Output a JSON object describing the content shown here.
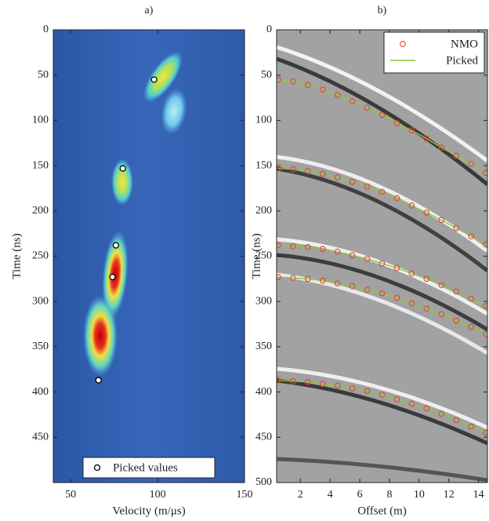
{
  "chart_data": [
    {
      "type": "scatter",
      "title": "a)",
      "x_label": "Velocity (m/μs)",
      "y_label": "Time (ns)",
      "xlim": [
        40,
        150
      ],
      "ylim": [
        0,
        500
      ],
      "y_inverted": true,
      "xticks": [
        50,
        100,
        150
      ],
      "yticks": [
        0,
        50,
        100,
        150,
        200,
        250,
        300,
        350,
        400,
        450
      ],
      "legend": "lower center",
      "series": [
        {
          "name": "Picked values",
          "color": "#000000",
          "x": [
            98,
            80,
            76,
            74,
            66
          ],
          "values": [
            55,
            153,
            238,
            273,
            387
          ]
        }
      ]
    },
    {
      "type": "line",
      "title": "b)",
      "x_label": "Offset (m)",
      "y_label": "Time (ns)",
      "xlim": [
        0.4,
        14.6
      ],
      "ylim": [
        0,
        500
      ],
      "y_inverted": true,
      "xticks": [
        2,
        4,
        6,
        8,
        10,
        12,
        14
      ],
      "yticks": [
        0,
        50,
        100,
        150,
        200,
        250,
        300,
        350,
        400,
        450,
        500
      ],
      "legend": "upper right",
      "x": [
        0.5,
        1.5,
        2.5,
        3.5,
        4.5,
        5.5,
        6.5,
        7.5,
        8.5,
        9.5,
        10.5,
        11.5,
        12.5,
        13.5,
        14.5
      ],
      "series": [
        {
          "name": "NMO",
          "color": "#e8432e",
          "style": "markers",
          "values": [
            [
              55,
              57,
              61,
              66,
              72,
              79,
              86,
              94,
              103,
              111,
              120,
              130,
              139,
              148,
              158
            ],
            [
              153,
              154,
              156,
              159,
              163,
              168,
              173,
              179,
              186,
              194,
              202,
              210,
              219,
              228,
              237
            ],
            [
              238,
              239,
              240,
              242,
              245,
              249,
              253,
              258,
              263,
              269,
              275,
              282,
              289,
              297,
              305
            ],
            [
              273,
              274,
              275,
              277,
              280,
              283,
              287,
              291,
              296,
              302,
              308,
              314,
              321,
              328,
              336
            ],
            [
              387,
              388,
              389,
              391,
              393,
              396,
              399,
              403,
              408,
              413,
              418,
              424,
              431,
              438,
              445
            ]
          ]
        },
        {
          "name": "Picked",
          "color": "#8cc83c",
          "style": "line",
          "values": [
            [
              55,
              57,
              61,
              66,
              72,
              79,
              86,
              94,
              103,
              111,
              120,
              130,
              139,
              148,
              158
            ],
            [
              153,
              154,
              156,
              159,
              163,
              168,
              173,
              179,
              186,
              194,
              202,
              210,
              219,
              228,
              237
            ],
            [
              238,
              239,
              240,
              242,
              245,
              249,
              253,
              258,
              263,
              269,
              275,
              282,
              289,
              297,
              305
            ],
            [
              273,
              274,
              275,
              277,
              280,
              283,
              287,
              291,
              296,
              302,
              308,
              314,
              321,
              328,
              336
            ],
            [
              387,
              388,
              389,
              391,
              393,
              396,
              399,
              403,
              408,
              413,
              418,
              424,
              431,
              438,
              445
            ]
          ]
        }
      ]
    }
  ]
}
